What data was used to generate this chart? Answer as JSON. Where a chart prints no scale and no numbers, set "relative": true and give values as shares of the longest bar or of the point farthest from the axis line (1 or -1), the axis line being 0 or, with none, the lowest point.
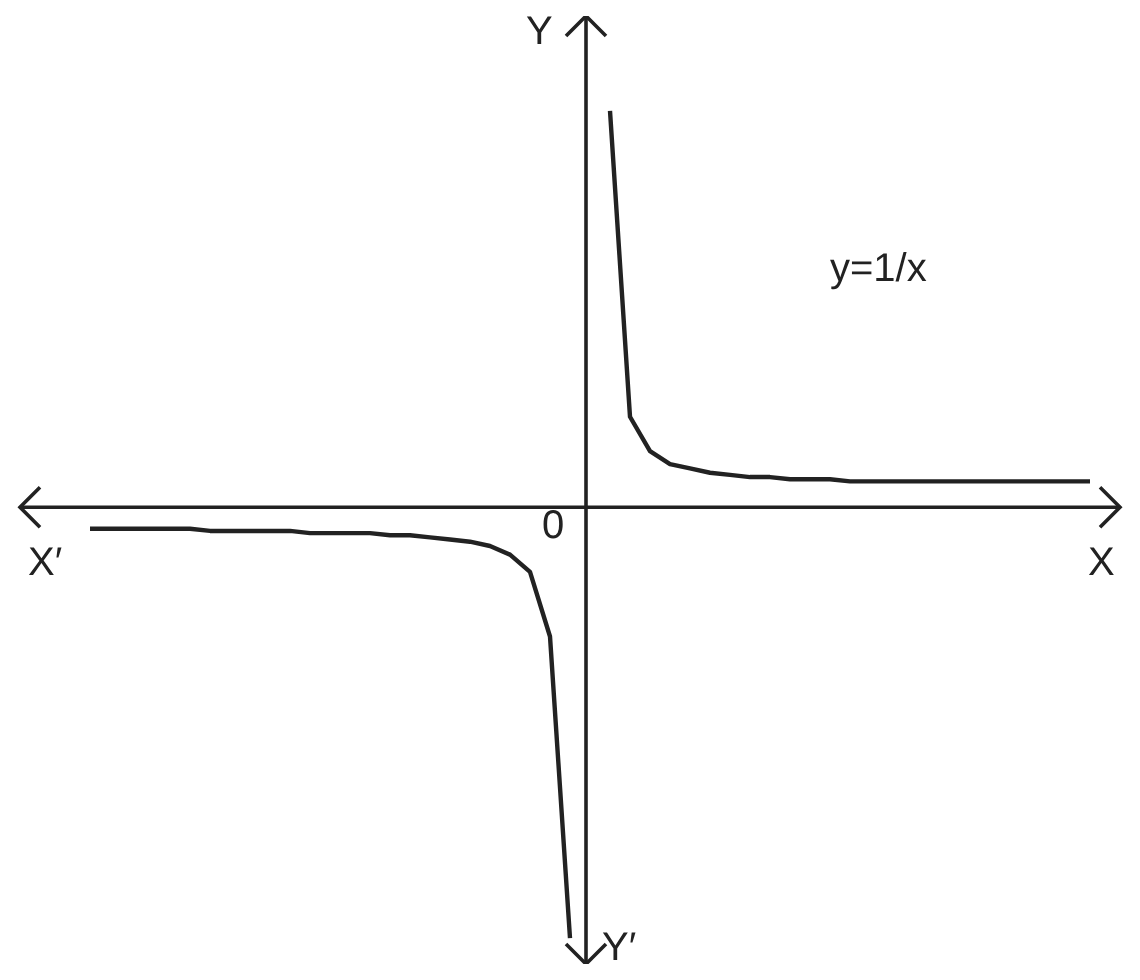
{
  "chart_data": {
    "type": "line",
    "relative": true,
    "xlabel": "X",
    "ylabel": "Y",
    "annotations": [
      "X′",
      "Y′",
      "0"
    ],
    "categories": [
      null,
      null,
      null,
      null,
      null,
      null,
      null,
      null,
      null,
      null,
      null,
      null,
      null,
      null,
      null,
      null,
      null,
      null,
      null,
      null,
      null,
      null,
      null,
      null,
      null,
      null,
      null,
      null,
      null,
      null,
      null,
      null,
      null,
      null,
      null,
      null,
      null,
      null,
      null,
      null,
      null,
      null,
      null,
      null,
      null,
      null,
      null,
      null,
      null,
      null,
      null
    ],
    "series": [
      {
        "color": "#222222",
        "values": [
          -0.05,
          -0.05,
          -0.05,
          -0.05,
          -0.05,
          -0.05,
          -0.055,
          -0.055,
          -0.055,
          -0.055,
          -0.055,
          -0.06,
          -0.06,
          -0.06,
          -0.06,
          -0.065,
          -0.065,
          -0.07,
          -0.075,
          -0.08,
          -0.09,
          -0.11,
          -0.15,
          -0.3,
          -1,
          null,
          null,
          null,
          null,
          null,
          null,
          null,
          null,
          null,
          null,
          null,
          null,
          null,
          null,
          null,
          null,
          null,
          null,
          null,
          null,
          null,
          null,
          null,
          null,
          null,
          null
        ]
      },
      {
        "name": "y=1/x",
        "color": "#222222",
        "values": [
          null,
          null,
          null,
          null,
          null,
          null,
          null,
          null,
          null,
          null,
          null,
          null,
          null,
          null,
          null,
          null,
          null,
          null,
          null,
          null,
          null,
          null,
          null,
          null,
          null,
          null,
          0.92,
          0.21,
          0.13,
          0.1,
          0.09,
          0.08,
          0.075,
          0.07,
          0.07,
          0.065,
          0.065,
          0.065,
          0.06,
          0.06,
          0.06,
          0.06,
          0.06,
          0.06,
          0.06,
          0.06,
          0.06,
          0.06,
          0.06,
          0.06,
          0.06
        ]
      }
    ],
    "marker": "none",
    "line_style": "solid"
  }
}
